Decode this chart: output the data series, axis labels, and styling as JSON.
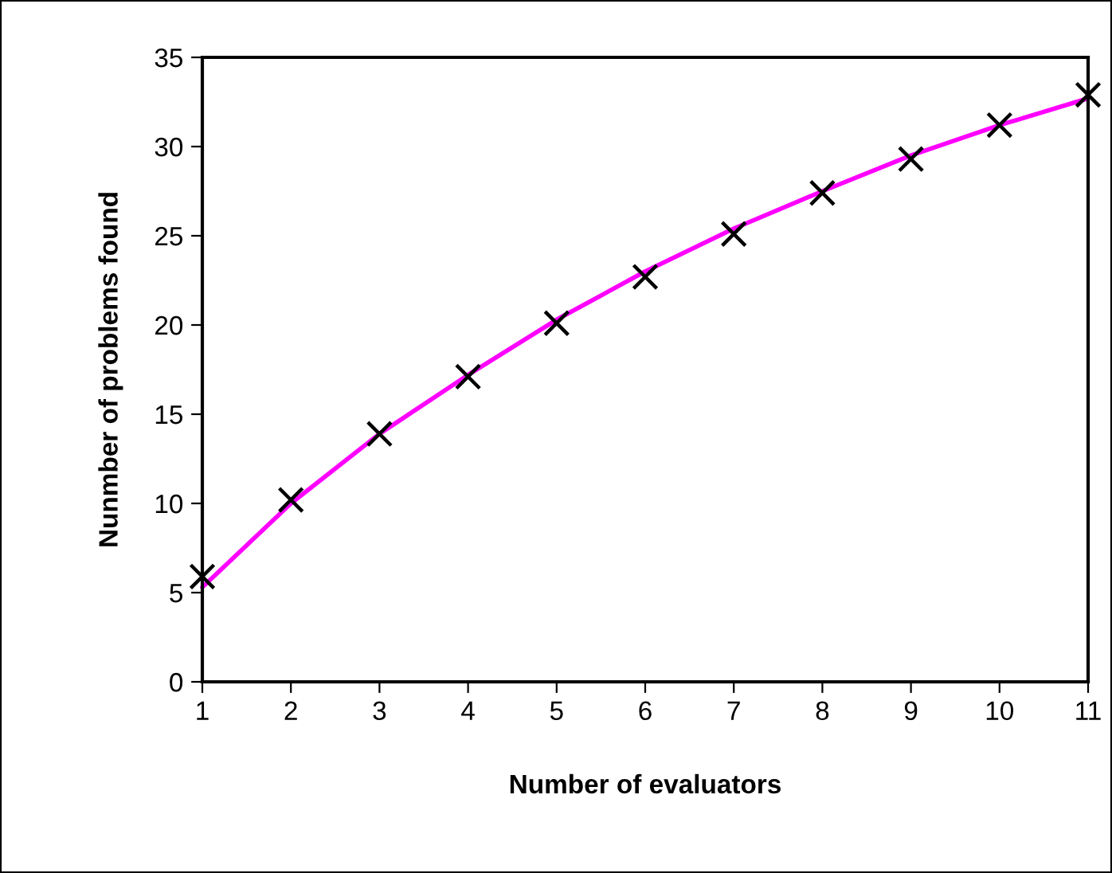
{
  "chart_data": {
    "type": "scatter",
    "xlabel": "Number of evaluators",
    "ylabel": "Nunmber of problems found",
    "x": [
      1,
      2,
      3,
      4,
      5,
      6,
      7,
      8,
      9,
      10,
      11
    ],
    "series": [
      {
        "color": "#000000",
        "marker": "cross",
        "values": [
          5.9,
          10.2,
          13.9,
          17.1,
          20.1,
          22.7,
          25.1,
          27.4,
          29.3,
          31.2,
          32.9
        ]
      },
      {
        "type": "line",
        "color": "#ff00ff",
        "marker": "none",
        "line_style": "solid",
        "x": [
          1,
          2,
          3,
          4,
          5,
          6,
          7,
          8,
          9,
          10,
          11
        ],
        "values": [
          5.3,
          10.0,
          13.9,
          17.2,
          20.3,
          23.0,
          25.4,
          27.5,
          29.5,
          31.2,
          32.7
        ]
      }
    ],
    "xlim": [
      1,
      11
    ],
    "xticks": [
      1,
      2,
      3,
      4,
      5,
      6,
      7,
      8,
      9,
      10,
      11
    ],
    "ylim": [
      0,
      35
    ],
    "yticks": [
      0,
      5,
      10,
      15,
      20,
      25,
      30,
      35
    ],
    "grid": false,
    "legend": false
  }
}
